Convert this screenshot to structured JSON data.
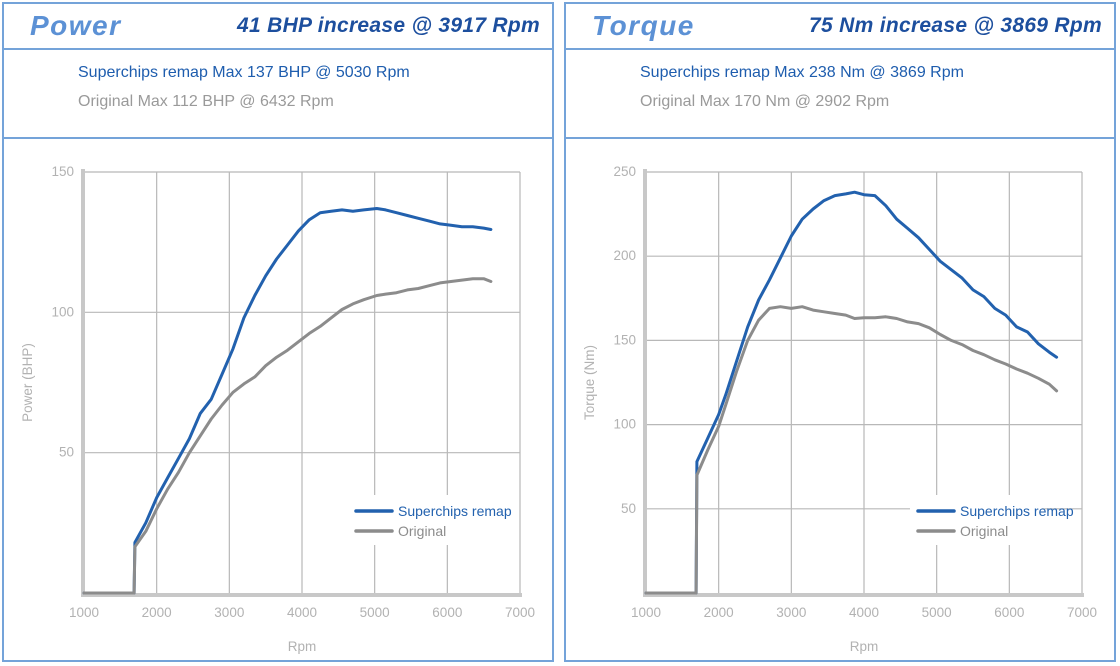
{
  "panels": [
    {
      "title": "Power",
      "headline": "41 BHP increase @ 3917 Rpm",
      "remap_summary": "Superchips remap Max 137 BHP @ 5030 Rpm",
      "original_summary": "Original Max 112 BHP @ 6432 Rpm"
    },
    {
      "title": "Torque",
      "headline": "75 Nm increase @ 3869 Rpm",
      "remap_summary": "Superchips remap Max 238 Nm @ 3869 Rpm",
      "original_summary": "Original Max 170 Nm @ 2902 Rpm"
    }
  ],
  "colors": {
    "panel_border": "#74a3d9",
    "title_blue": "#5c91d5",
    "headline_blue": "#1d4f9e",
    "remap_blue": "#2261ae",
    "original_gray": "#8c8c8c",
    "summary_gray": "#9a9a9a",
    "grid_gray": "#b8b8b8",
    "axis_gray": "#c8c8c8",
    "tick_label_gray": "#b2b2b2"
  },
  "chart_data": [
    {
      "type": "line",
      "title": "Power",
      "xlabel": "Rpm",
      "ylabel": "Power (BHP)",
      "xlim": [
        1000,
        7000
      ],
      "ylim": [
        0,
        150
      ],
      "xticks": [
        1000,
        2000,
        3000,
        4000,
        5000,
        6000,
        7000
      ],
      "yticks": [
        50,
        100,
        150
      ],
      "grid": true,
      "legend_position": "inside-bottom-right",
      "x": [
        1000,
        1690,
        1700,
        1850,
        2000,
        2150,
        2300,
        2450,
        2600,
        2750,
        2900,
        3050,
        3200,
        3350,
        3500,
        3650,
        3800,
        3950,
        4100,
        4250,
        4400,
        4550,
        4700,
        4850,
        5030,
        5150,
        5300,
        5450,
        5600,
        5750,
        5900,
        6050,
        6200,
        6350,
        6500,
        6600
      ],
      "series": [
        {
          "name": "Superchips remap",
          "color": "#2261ae",
          "values": [
            0,
            0,
            18,
            25,
            34,
            41,
            48,
            55,
            64,
            69,
            78,
            87,
            98,
            106,
            113,
            119,
            124,
            129,
            133,
            135.5,
            136,
            136.5,
            136,
            136.5,
            137,
            136.5,
            135.5,
            134.5,
            133.5,
            132.5,
            131.5,
            131,
            130.5,
            130.5,
            130,
            129.5
          ]
        },
        {
          "name": "Original",
          "color": "#8c8c8c",
          "values": [
            0,
            0,
            16.5,
            22,
            30,
            37,
            43,
            50,
            56,
            62,
            67,
            71.5,
            74.5,
            77,
            81,
            84,
            86.5,
            89.5,
            92.5,
            95,
            98,
            101,
            103,
            104.5,
            106,
            106.5,
            107,
            108,
            108.5,
            109.5,
            110.5,
            111,
            111.5,
            112,
            112,
            111
          ]
        }
      ]
    },
    {
      "type": "line",
      "title": "Torque",
      "xlabel": "Rpm",
      "ylabel": "Torque (Nm)",
      "xlim": [
        1000,
        7000
      ],
      "ylim": [
        0,
        250
      ],
      "xticks": [
        1000,
        2000,
        3000,
        4000,
        5000,
        6000,
        7000
      ],
      "yticks": [
        50,
        100,
        150,
        200,
        250
      ],
      "grid": true,
      "legend_position": "inside-bottom-right",
      "x": [
        1000,
        1690,
        1700,
        1850,
        2000,
        2100,
        2250,
        2400,
        2550,
        2700,
        2850,
        3000,
        3150,
        3300,
        3450,
        3600,
        3750,
        3870,
        4000,
        4150,
        4300,
        4450,
        4600,
        4750,
        4900,
        5050,
        5200,
        5350,
        5500,
        5650,
        5800,
        5950,
        6100,
        6250,
        6400,
        6550,
        6650
      ],
      "series": [
        {
          "name": "Superchips remap",
          "color": "#2261ae",
          "values": [
            0,
            0,
            78,
            92,
            106,
            118,
            138,
            158,
            174,
            186,
            199,
            212,
            222,
            228,
            233,
            236,
            237,
            238,
            236.5,
            236,
            230,
            222,
            216.5,
            211,
            204,
            197,
            192,
            187,
            180,
            176,
            169,
            165,
            158,
            155,
            148,
            143,
            140
          ]
        },
        {
          "name": "Original",
          "color": "#8c8c8c",
          "values": [
            0,
            0,
            70,
            85,
            99,
            112,
            132,
            150,
            162,
            169,
            170,
            169,
            170,
            168,
            167,
            166,
            165,
            163,
            163.5,
            163.5,
            164,
            163,
            161,
            160,
            157.5,
            153.5,
            150,
            147.5,
            144,
            141.5,
            138.5,
            136,
            133,
            130.5,
            127.5,
            124,
            120
          ]
        }
      ]
    }
  ]
}
